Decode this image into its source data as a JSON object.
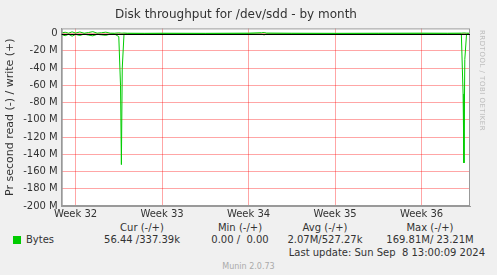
{
  "chart_data": {
    "type": "line",
    "title": "Disk throughput for /dev/sdd - by month",
    "y_label": "Pr second read (-) / write (+)",
    "x": [
      31.84,
      31.88,
      31.92,
      31.96,
      32.0,
      32.05,
      32.1,
      32.15,
      32.2,
      32.25,
      32.3,
      32.35,
      32.4,
      32.45,
      32.5,
      32.52,
      32.53,
      32.54,
      32.56,
      32.6,
      32.8,
      33.0,
      33.5,
      34.0,
      34.15,
      34.18,
      34.21,
      34.5,
      35.0,
      35.5,
      36.0,
      36.3,
      36.46,
      36.48,
      36.49,
      36.5,
      36.52,
      36.56
    ],
    "series": [
      {
        "name": "Bytes",
        "color": "#00cc00",
        "values": [
          -1.2,
          -2.5,
          -0.8,
          -3.0,
          -1.0,
          -2.2,
          -0.6,
          -1.8,
          -2.6,
          -0.9,
          -1.5,
          -2.0,
          -0.7,
          -0.5,
          -3.5,
          -60,
          -152,
          -40,
          -1.0,
          -0.4,
          -0.3,
          -0.3,
          -0.2,
          -0.3,
          -0.8,
          -1.5,
          -0.6,
          -0.3,
          -0.2,
          -0.2,
          -0.3,
          -0.3,
          -0.5,
          -70,
          -150,
          -30,
          -0.8,
          -0.4
        ]
      },
      {
        "name": "Bytes",
        "color": "#00cc00",
        "values": [
          0.8,
          1.5,
          0.5,
          2.0,
          0.6,
          1.8,
          0.4,
          1.2,
          2.2,
          0.5,
          1.0,
          1.6,
          0.5,
          0.4,
          0.8,
          0.6,
          0.5,
          0.5,
          0.6,
          0.4,
          0.3,
          0.4,
          0.3,
          0.5,
          1.0,
          1.2,
          0.6,
          0.4,
          0.3,
          0.4,
          0.5,
          0.4,
          0.5,
          0.6,
          0.8,
          0.6,
          0.5,
          0.4
        ]
      }
    ],
    "xlim": [
      31.84,
      36.56
    ],
    "xticks": [
      {
        "value": 32,
        "label": "Week 32"
      },
      {
        "value": 33,
        "label": "Week 33"
      },
      {
        "value": 34,
        "label": "Week 34"
      },
      {
        "value": 35,
        "label": "Week 35"
      },
      {
        "value": 36,
        "label": "Week 36"
      }
    ],
    "ylim": [
      -200,
      6
    ],
    "yticks": [
      0,
      {
        "value": -20,
        "label": "-20 M"
      },
      {
        "value": -40,
        "label": "-40 M"
      },
      {
        "value": -60,
        "label": "-60 M"
      },
      {
        "value": -80,
        "label": "-80 M"
      },
      {
        "value": -100,
        "label": "-100 M"
      },
      {
        "value": -120,
        "label": "-120 M"
      },
      {
        "value": -140,
        "label": "-140 M"
      },
      {
        "value": -160,
        "label": "-160 M"
      },
      {
        "value": -180,
        "label": "-180 M"
      },
      {
        "value": -200,
        "label": "-200 M"
      }
    ],
    "grid": true,
    "summary": {
      "columns": [
        "Cur (-/+)",
        "Min (-/+)",
        "Avg (-/+)",
        "Max (-/+)"
      ],
      "rows": [
        {
          "label": "Bytes",
          "cells": [
            "56.44 /337.39k",
            "0.00 /  0.00",
            "2.07M/527.27k",
            "169.81M/ 23.21M"
          ]
        }
      ]
    },
    "footer": [
      "Last update: Sun Sep  8 13:00:09 2024",
      "Munin 2.0.73"
    ],
    "side_text": "RRDTOOL / TOBI OETIKER"
  }
}
